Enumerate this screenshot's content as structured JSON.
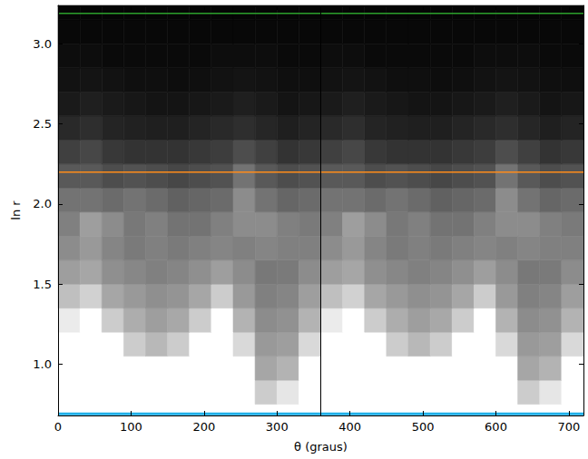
{
  "chart_data": {
    "type": "heatmap",
    "x_label": "θ (graus)",
    "y_label": "ln r",
    "xlim": [
      0,
      720
    ],
    "xticks": [
      0,
      100,
      200,
      300,
      400,
      500,
      600,
      700
    ],
    "ylim": [
      0.68,
      3.24
    ],
    "yticks": [
      {
        "value": 1,
        "label": "1.0"
      },
      {
        "value": 1.5,
        "label": "1.5"
      },
      {
        "value": 2,
        "label": "2.0"
      },
      {
        "value": 2.5,
        "label": "2.5"
      },
      {
        "value": 3,
        "label": "3.0"
      }
    ],
    "cells": {
      "x_bins": [
        0,
        30,
        60,
        90,
        120,
        150,
        180,
        210,
        240,
        270,
        300,
        330,
        360,
        390,
        420,
        450,
        480,
        510,
        540,
        570,
        600,
        630,
        660,
        690,
        720
      ],
      "y_bins": [
        0.6,
        0.75,
        0.9,
        1.05,
        1.2,
        1.35,
        1.5,
        1.65,
        1.8,
        1.95,
        2.1,
        2.25,
        2.4,
        2.55,
        2.7,
        2.85,
        3.0,
        3.15,
        3.3
      ],
      "zlim": [
        0,
        1
      ],
      "values": [
        [
          1,
          1,
          1,
          1,
          1,
          1,
          1,
          1,
          1,
          1,
          1,
          1,
          1,
          1,
          1,
          1,
          1,
          1,
          1,
          1,
          1,
          1,
          1,
          1
        ],
        [
          1,
          1,
          1,
          1,
          1,
          1,
          1,
          1,
          1,
          0.8,
          0.9,
          1,
          1,
          1,
          1,
          1,
          1,
          1,
          1,
          1,
          1,
          0.8,
          0.9,
          1
        ],
        [
          1,
          1,
          1,
          1,
          1,
          1,
          1,
          1,
          1,
          0.65,
          0.7,
          1,
          1,
          1,
          1,
          1,
          1,
          1,
          1,
          1,
          1,
          0.65,
          0.7,
          1
        ],
        [
          1,
          1,
          1,
          0.8,
          0.72,
          0.8,
          1,
          1,
          0.85,
          0.6,
          0.62,
          0.85,
          1,
          1,
          1,
          0.8,
          0.72,
          0.8,
          1,
          1,
          0.85,
          0.6,
          0.62,
          0.85
        ],
        [
          0.92,
          1,
          0.8,
          0.68,
          0.62,
          0.66,
          0.8,
          1,
          0.7,
          0.55,
          0.57,
          0.7,
          0.92,
          1,
          0.8,
          0.68,
          0.62,
          0.66,
          0.8,
          1,
          0.7,
          0.55,
          0.57,
          0.7
        ],
        [
          0.75,
          0.82,
          0.65,
          0.6,
          0.56,
          0.58,
          0.65,
          0.8,
          0.6,
          0.5,
          0.52,
          0.62,
          0.75,
          0.82,
          0.65,
          0.6,
          0.56,
          0.58,
          0.65,
          0.8,
          0.6,
          0.5,
          0.52,
          0.62
        ],
        [
          0.62,
          0.65,
          0.56,
          0.53,
          0.5,
          0.52,
          0.56,
          0.62,
          0.55,
          0.47,
          0.48,
          0.55,
          0.62,
          0.65,
          0.56,
          0.53,
          0.5,
          0.52,
          0.56,
          0.62,
          0.55,
          0.47,
          0.48,
          0.55
        ],
        [
          0.55,
          0.6,
          0.52,
          0.48,
          0.5,
          0.48,
          0.5,
          0.52,
          0.5,
          0.52,
          0.5,
          0.5,
          0.55,
          0.6,
          0.52,
          0.48,
          0.5,
          0.48,
          0.5,
          0.52,
          0.5,
          0.52,
          0.5,
          0.5
        ],
        [
          0.5,
          0.62,
          0.55,
          0.47,
          0.5,
          0.45,
          0.45,
          0.5,
          0.55,
          0.55,
          0.5,
          0.48,
          0.5,
          0.62,
          0.55,
          0.47,
          0.5,
          0.45,
          0.45,
          0.5,
          0.55,
          0.55,
          0.5,
          0.48
        ],
        [
          0.45,
          0.45,
          0.42,
          0.45,
          0.42,
          0.38,
          0.4,
          0.42,
          0.55,
          0.45,
          0.4,
          0.42,
          0.45,
          0.45,
          0.42,
          0.45,
          0.42,
          0.38,
          0.4,
          0.42,
          0.55,
          0.45,
          0.4,
          0.42
        ],
        [
          0.35,
          0.35,
          0.3,
          0.32,
          0.3,
          0.28,
          0.3,
          0.32,
          0.45,
          0.35,
          0.3,
          0.32,
          0.35,
          0.35,
          0.3,
          0.32,
          0.3,
          0.28,
          0.3,
          0.32,
          0.45,
          0.35,
          0.3,
          0.32
        ],
        [
          0.25,
          0.28,
          0.22,
          0.2,
          0.2,
          0.2,
          0.22,
          0.24,
          0.3,
          0.25,
          0.2,
          0.22,
          0.25,
          0.28,
          0.22,
          0.2,
          0.2,
          0.2,
          0.22,
          0.24,
          0.3,
          0.25,
          0.2,
          0.22
        ],
        [
          0.16,
          0.18,
          0.14,
          0.13,
          0.12,
          0.12,
          0.14,
          0.16,
          0.18,
          0.15,
          0.12,
          0.14,
          0.16,
          0.18,
          0.14,
          0.13,
          0.12,
          0.12,
          0.14,
          0.16,
          0.18,
          0.15,
          0.12,
          0.14
        ],
        [
          0.1,
          0.12,
          0.1,
          0.09,
          0.08,
          0.08,
          0.09,
          0.1,
          0.12,
          0.1,
          0.08,
          0.09,
          0.1,
          0.12,
          0.1,
          0.09,
          0.08,
          0.08,
          0.09,
          0.1,
          0.12,
          0.1,
          0.08,
          0.09
        ],
        [
          0.07,
          0.08,
          0.07,
          0.06,
          0.06,
          0.05,
          0.06,
          0.07,
          0.08,
          0.07,
          0.06,
          0.06,
          0.07,
          0.08,
          0.07,
          0.06,
          0.06,
          0.05,
          0.06,
          0.07,
          0.08,
          0.07,
          0.06,
          0.06
        ],
        [
          0.05,
          0.05,
          0.04,
          0.04,
          0.04,
          0.04,
          0.04,
          0.05,
          0.05,
          0.05,
          0.04,
          0.04,
          0.05,
          0.05,
          0.04,
          0.04,
          0.04,
          0.04,
          0.04,
          0.05,
          0.05,
          0.05,
          0.04,
          0.04
        ],
        [
          0.03,
          0.03,
          0.03,
          0.03,
          0.03,
          0.03,
          0.03,
          0.03,
          0.03,
          0.03,
          0.03,
          0.03,
          0.03,
          0.03,
          0.03,
          0.03,
          0.03,
          0.03,
          0.03,
          0.03,
          0.03,
          0.03,
          0.03,
          0.03
        ],
        [
          0.02,
          0.02,
          0.02,
          0.02,
          0.02,
          0.02,
          0.02,
          0.02,
          0.02,
          0.02,
          0.02,
          0.02,
          0.02,
          0.02,
          0.02,
          0.02,
          0.02,
          0.02,
          0.02,
          0.02,
          0.02,
          0.02,
          0.02,
          0.02
        ]
      ]
    },
    "hlines": [
      {
        "y": 3.19,
        "color": "#2ca02c"
      },
      {
        "y": 2.2,
        "color": "#ff8c1a"
      },
      {
        "y": 0.69,
        "color": "#1fb0e8"
      }
    ],
    "vlines": [
      {
        "x": 360,
        "color": "#000000"
      }
    ]
  }
}
